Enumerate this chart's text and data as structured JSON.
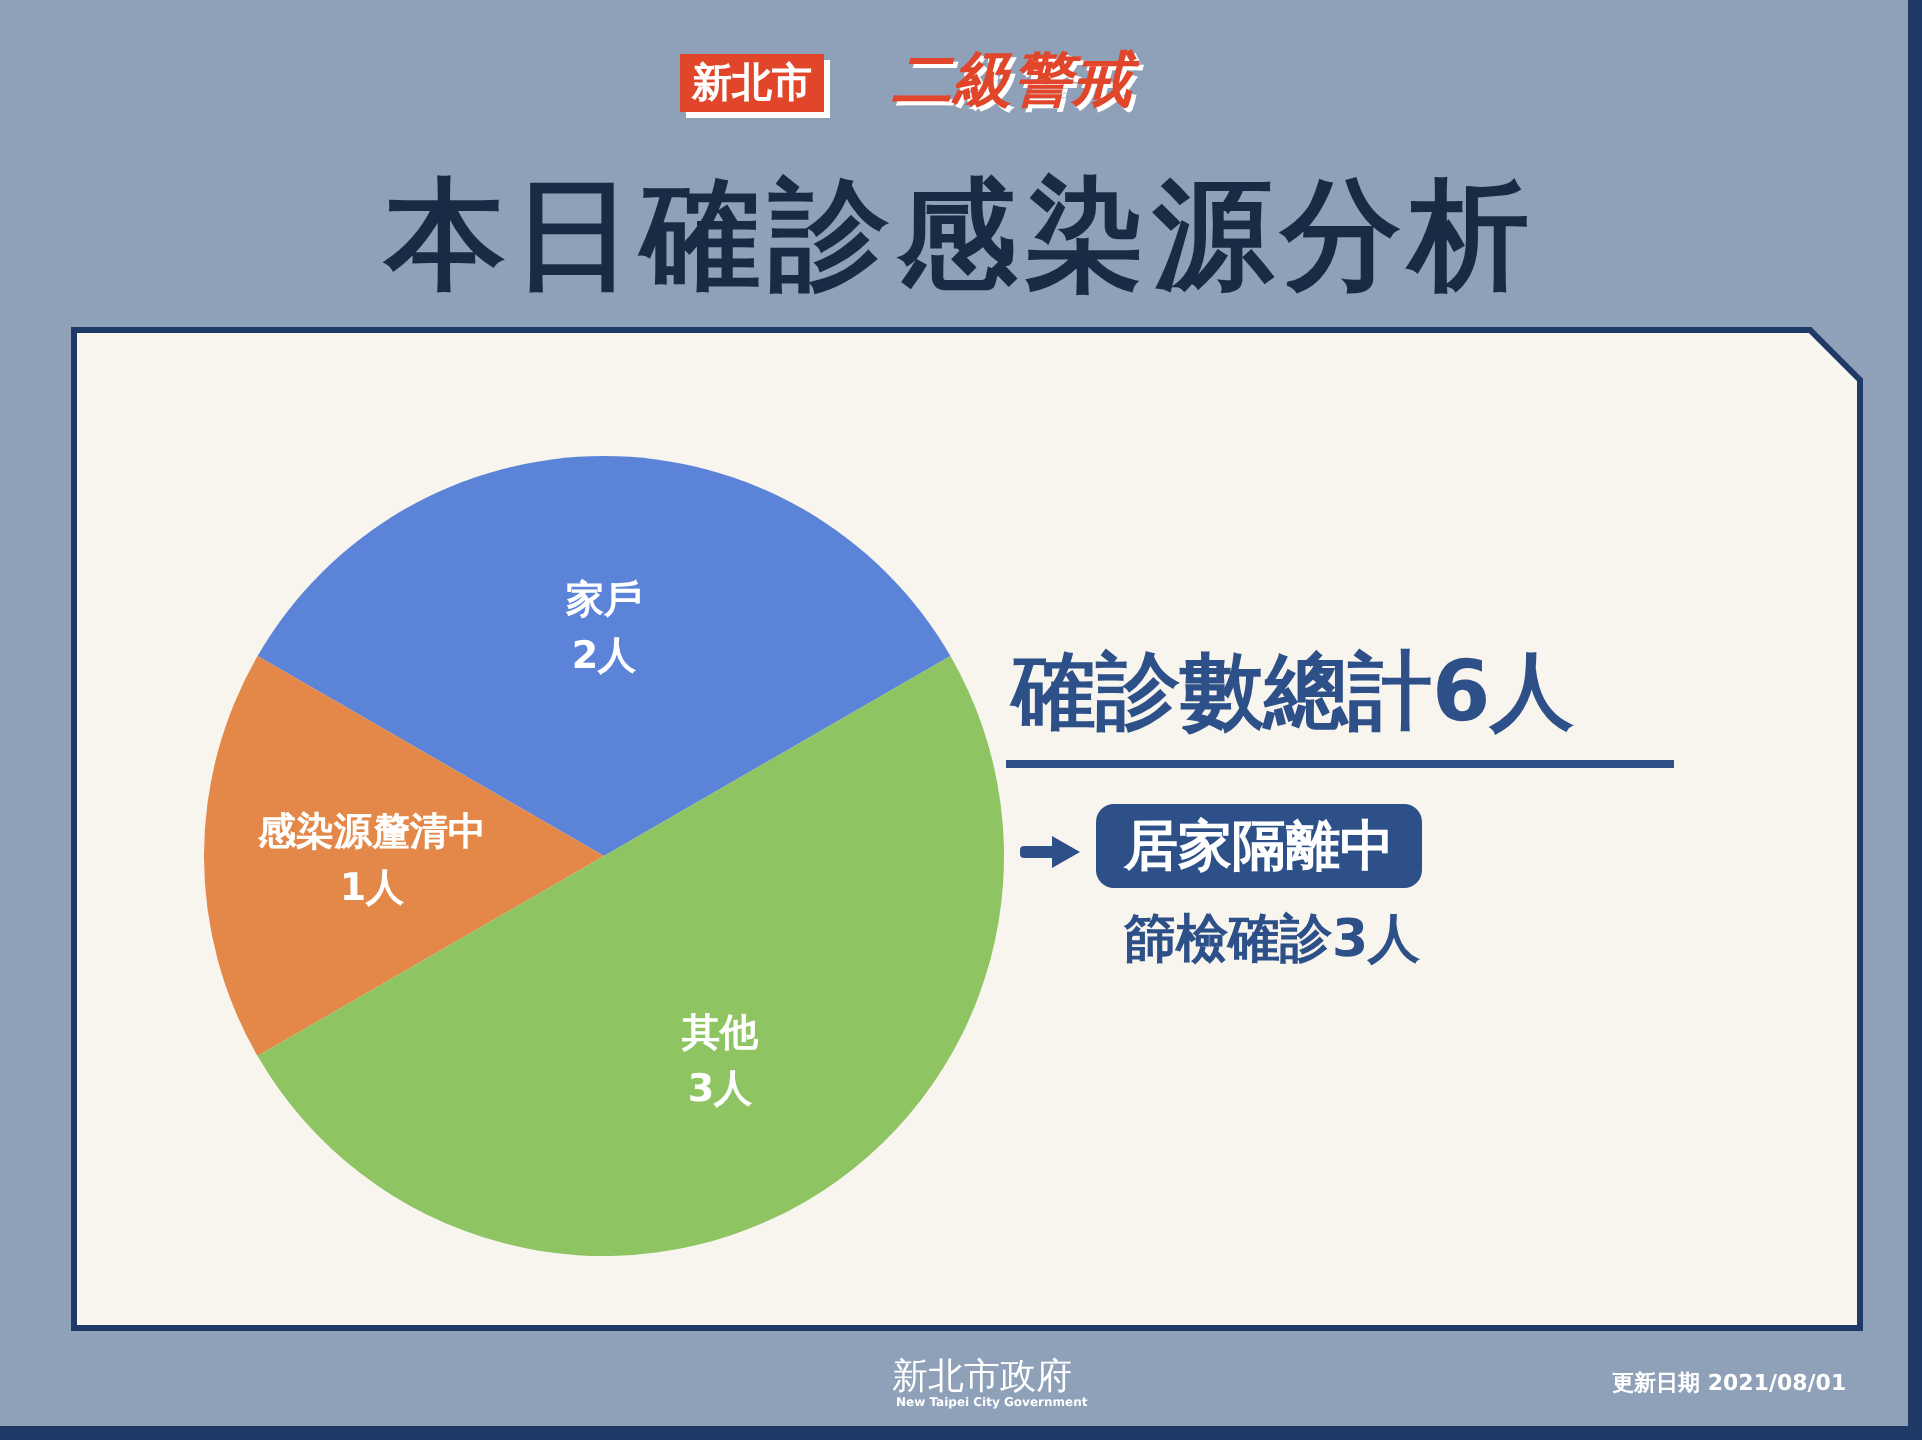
{
  "chart_data": {
    "type": "pie",
    "title": "本日確診感染源分析",
    "subtitle": "新北市",
    "categories": [
      "家戶",
      "感染源釐清中",
      "其他"
    ],
    "values": [
      2,
      1,
      3
    ],
    "value_labels": [
      "2人",
      "1人",
      "3人"
    ],
    "colors": [
      "#5b84d9",
      "#e38848",
      "#8ec462"
    ],
    "legend": false,
    "annotations": [
      "二級警戒",
      "確診數總計6人",
      "居家隔離中",
      "篩檢確診3人",
      "新北市政府",
      "New Taipei City Government",
      "更新日期 2021/08/01"
    ]
  }
}
